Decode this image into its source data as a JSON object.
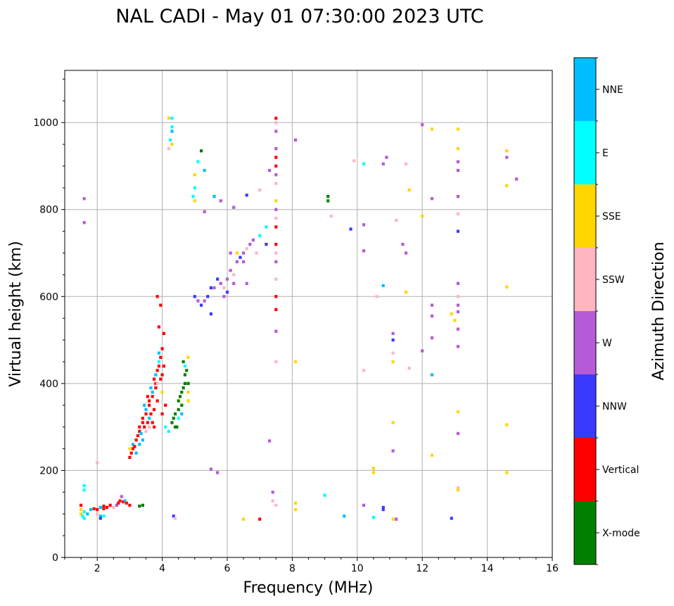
{
  "chart_data": {
    "type": "scatter",
    "title": "NAL CADI - May 01 07:30:00 2023 UTC",
    "xlabel": "Frequency (MHz)",
    "ylabel": "Virtual height (km)",
    "xlim": [
      1,
      16
    ],
    "ylim": [
      0,
      1120
    ],
    "xticks": [
      2,
      4,
      6,
      8,
      10,
      12,
      14,
      16
    ],
    "yticks": [
      0,
      200,
      400,
      600,
      800,
      1000
    ],
    "grid": true,
    "colorbar": {
      "label": "Azimuth Direction",
      "categories": [
        "X-mode",
        "Vertical",
        "NNW",
        "W",
        "SSW",
        "SSE",
        "E",
        "NNE"
      ],
      "colors": [
        "#008000",
        "#ff0000",
        "#3a3aff",
        "#b55ad8",
        "#ffb6c1",
        "#ffd700",
        "#00ffff",
        "#00bfff"
      ]
    },
    "points_format": [
      "frequency_mhz",
      "virtual_height_km",
      "category_index"
    ],
    "points": [
      [
        1.5,
        100,
        5
      ],
      [
        1.5,
        110,
        5
      ],
      [
        1.5,
        120,
        1
      ],
      [
        1.55,
        95,
        6
      ],
      [
        1.6,
        105,
        6
      ],
      [
        1.6,
        165,
        6
      ],
      [
        1.6,
        155,
        6
      ],
      [
        1.7,
        100,
        7
      ],
      [
        1.8,
        110,
        7
      ],
      [
        1.9,
        112,
        1
      ],
      [
        2.0,
        110,
        1
      ],
      [
        2.1,
        115,
        7
      ],
      [
        2.2,
        112,
        1
      ],
      [
        2.2,
        118,
        1
      ],
      [
        2.3,
        115,
        1
      ],
      [
        2.4,
        120,
        1
      ],
      [
        2.5,
        115,
        4
      ],
      [
        2.6,
        120,
        3
      ],
      [
        2.65,
        125,
        1
      ],
      [
        2.7,
        130,
        1
      ],
      [
        2.75,
        140,
        3
      ],
      [
        2.8,
        128,
        1
      ],
      [
        2.85,
        130,
        7
      ],
      [
        2.9,
        125,
        1
      ],
      [
        3.0,
        120,
        1
      ],
      [
        2.1,
        95,
        7
      ],
      [
        2.1,
        90,
        2
      ],
      [
        2.0,
        100,
        4
      ],
      [
        2.2,
        95,
        6
      ],
      [
        1.6,
        90,
        6
      ],
      [
        3.3,
        118,
        0
      ],
      [
        3.4,
        120,
        0
      ],
      [
        3.0,
        230,
        1
      ],
      [
        3.05,
        240,
        1
      ],
      [
        3.1,
        250,
        1
      ],
      [
        3.1,
        260,
        7
      ],
      [
        3.15,
        255,
        1
      ],
      [
        3.0,
        250,
        5
      ],
      [
        3.2,
        270,
        1
      ],
      [
        3.25,
        280,
        1
      ],
      [
        3.3,
        290,
        1
      ],
      [
        3.3,
        300,
        1
      ],
      [
        3.35,
        285,
        7
      ],
      [
        3.4,
        310,
        1
      ],
      [
        3.4,
        320,
        1
      ],
      [
        3.45,
        300,
        1
      ],
      [
        3.5,
        330,
        1
      ],
      [
        3.5,
        340,
        7
      ],
      [
        3.55,
        310,
        1
      ],
      [
        3.6,
        350,
        1
      ],
      [
        3.6,
        360,
        1
      ],
      [
        3.6,
        300,
        4
      ],
      [
        3.65,
        330,
        1
      ],
      [
        3.7,
        370,
        1
      ],
      [
        3.7,
        380,
        7
      ],
      [
        3.75,
        340,
        1
      ],
      [
        3.75,
        300,
        1
      ],
      [
        3.8,
        390,
        1
      ],
      [
        3.8,
        400,
        1
      ],
      [
        3.8,
        420,
        7
      ],
      [
        3.85,
        360,
        1
      ],
      [
        3.85,
        430,
        1
      ],
      [
        3.9,
        440,
        1
      ],
      [
        3.9,
        450,
        6
      ],
      [
        3.9,
        470,
        7
      ],
      [
        3.95,
        460,
        1
      ],
      [
        3.95,
        410,
        1
      ],
      [
        4.0,
        480,
        1
      ],
      [
        4.0,
        420,
        1
      ],
      [
        4.0,
        380,
        5
      ],
      [
        4.05,
        440,
        1
      ],
      [
        3.9,
        530,
        1
      ],
      [
        3.95,
        580,
        1
      ],
      [
        3.85,
        600,
        1
      ],
      [
        4.05,
        515,
        1
      ],
      [
        3.4,
        270,
        7
      ],
      [
        3.5,
        290,
        4
      ],
      [
        3.6,
        320,
        7
      ],
      [
        3.7,
        310,
        1
      ],
      [
        3.45,
        350,
        7
      ],
      [
        3.55,
        370,
        1
      ],
      [
        3.65,
        390,
        7
      ],
      [
        3.75,
        410,
        1
      ],
      [
        3.85,
        400,
        4
      ],
      [
        4.1,
        350,
        1
      ],
      [
        4.0,
        330,
        1
      ],
      [
        4.1,
        300,
        6
      ],
      [
        4.2,
        290,
        6
      ],
      [
        3.3,
        260,
        7
      ],
      [
        3.2,
        240,
        7
      ],
      [
        4.3,
        310,
        0
      ],
      [
        4.35,
        320,
        0
      ],
      [
        4.4,
        330,
        0
      ],
      [
        4.45,
        300,
        0
      ],
      [
        4.5,
        340,
        0
      ],
      [
        4.5,
        360,
        0
      ],
      [
        4.55,
        370,
        0
      ],
      [
        4.6,
        380,
        0
      ],
      [
        4.6,
        350,
        0
      ],
      [
        4.65,
        390,
        0
      ],
      [
        4.7,
        400,
        0
      ],
      [
        4.7,
        420,
        0
      ],
      [
        4.75,
        430,
        0
      ],
      [
        4.65,
        450,
        0
      ],
      [
        4.8,
        380,
        5
      ],
      [
        4.8,
        360,
        5
      ],
      [
        4.6,
        330,
        7
      ],
      [
        4.5,
        320,
        6
      ],
      [
        4.7,
        440,
        6
      ],
      [
        4.8,
        460,
        5
      ],
      [
        4.8,
        400,
        0
      ],
      [
        4.4,
        300,
        0
      ],
      [
        4.2,
        1010,
        5
      ],
      [
        4.3,
        1010,
        6
      ],
      [
        4.3,
        990,
        6
      ],
      [
        4.3,
        950,
        5
      ],
      [
        4.25,
        960,
        6
      ],
      [
        4.3,
        980,
        7
      ],
      [
        4.2,
        940,
        4
      ],
      [
        5.0,
        880,
        5
      ],
      [
        5.0,
        850,
        6
      ],
      [
        4.95,
        830,
        6
      ],
      [
        5.0,
        820,
        5
      ],
      [
        5.1,
        910,
        6
      ],
      [
        5.2,
        935,
        0
      ],
      [
        5.3,
        890,
        7
      ],
      [
        5.6,
        830,
        7
      ],
      [
        5.3,
        795,
        3
      ],
      [
        5.8,
        820,
        3
      ],
      [
        5.0,
        600,
        2
      ],
      [
        5.1,
        590,
        3
      ],
      [
        5.2,
        580,
        2
      ],
      [
        5.3,
        590,
        3
      ],
      [
        5.4,
        600,
        2
      ],
      [
        5.5,
        560,
        2
      ],
      [
        5.6,
        620,
        3
      ],
      [
        5.7,
        640,
        2
      ],
      [
        5.8,
        630,
        3
      ],
      [
        5.9,
        620,
        4
      ],
      [
        6.0,
        640,
        3
      ],
      [
        6.1,
        660,
        3
      ],
      [
        6.1,
        700,
        3
      ],
      [
        6.2,
        650,
        4
      ],
      [
        6.3,
        680,
        3
      ],
      [
        6.4,
        690,
        2
      ],
      [
        6.5,
        700,
        3
      ],
      [
        6.5,
        680,
        3
      ],
      [
        6.6,
        710,
        4
      ],
      [
        6.7,
        720,
        3
      ],
      [
        6.8,
        730,
        3
      ],
      [
        6.9,
        700,
        4
      ],
      [
        7.0,
        740,
        6
      ],
      [
        6.3,
        700,
        5
      ],
      [
        6.0,
        610,
        2
      ],
      [
        5.5,
        620,
        2
      ],
      [
        5.9,
        600,
        3
      ],
      [
        6.2,
        630,
        3
      ],
      [
        6.6,
        630,
        3
      ],
      [
        7.2,
        760,
        6
      ],
      [
        7.2,
        720,
        2
      ],
      [
        7.5,
        1010,
        1
      ],
      [
        7.5,
        1000,
        4
      ],
      [
        7.5,
        980,
        3
      ],
      [
        7.5,
        940,
        3
      ],
      [
        7.5,
        920,
        1
      ],
      [
        7.5,
        900,
        1
      ],
      [
        7.5,
        880,
        3
      ],
      [
        7.5,
        860,
        4
      ],
      [
        7.5,
        820,
        5
      ],
      [
        7.5,
        800,
        3
      ],
      [
        7.5,
        780,
        4
      ],
      [
        7.5,
        760,
        1
      ],
      [
        7.5,
        720,
        1
      ],
      [
        7.5,
        700,
        4
      ],
      [
        7.5,
        680,
        3
      ],
      [
        7.5,
        640,
        4
      ],
      [
        7.5,
        600,
        1
      ],
      [
        7.5,
        570,
        1
      ],
      [
        7.5,
        520,
        3
      ],
      [
        7.5,
        450,
        4
      ],
      [
        7.4,
        150,
        3
      ],
      [
        7.4,
        130,
        4
      ],
      [
        7.5,
        120,
        4
      ],
      [
        1.6,
        825,
        3
      ],
      [
        1.6,
        770,
        3
      ],
      [
        8.1,
        960,
        3
      ],
      [
        9.1,
        830,
        0
      ],
      [
        9.1,
        820,
        0
      ],
      [
        9.2,
        785,
        4
      ],
      [
        9.8,
        755,
        2
      ],
      [
        10.2,
        905,
        6
      ],
      [
        10.2,
        765,
        3
      ],
      [
        10.2,
        705,
        3
      ],
      [
        10.8,
        625,
        7
      ],
      [
        10.6,
        600,
        4
      ],
      [
        10.2,
        430,
        4
      ],
      [
        10.5,
        205,
        5
      ],
      [
        10.5,
        195,
        5
      ],
      [
        11.1,
        515,
        3
      ],
      [
        11.1,
        500,
        2
      ],
      [
        11.1,
        470,
        4
      ],
      [
        11.1,
        450,
        5
      ],
      [
        11.1,
        310,
        5
      ],
      [
        11.1,
        245,
        3
      ],
      [
        11.4,
        720,
        3
      ],
      [
        11.5,
        700,
        3
      ],
      [
        11.5,
        610,
        5
      ],
      [
        11.6,
        845,
        5
      ],
      [
        11.2,
        775,
        4
      ],
      [
        12.0,
        995,
        3
      ],
      [
        12.3,
        985,
        5
      ],
      [
        12.3,
        825,
        3
      ],
      [
        12.0,
        785,
        5
      ],
      [
        12.3,
        580,
        3
      ],
      [
        12.3,
        555,
        3
      ],
      [
        12.3,
        505,
        3
      ],
      [
        12.0,
        475,
        3
      ],
      [
        12.3,
        420,
        7
      ],
      [
        12.3,
        235,
        5
      ],
      [
        13.1,
        985,
        5
      ],
      [
        13.1,
        940,
        5
      ],
      [
        13.1,
        910,
        3
      ],
      [
        13.1,
        890,
        3
      ],
      [
        13.1,
        830,
        3
      ],
      [
        13.1,
        790,
        4
      ],
      [
        13.1,
        750,
        2
      ],
      [
        13.1,
        630,
        3
      ],
      [
        13.1,
        600,
        4
      ],
      [
        13.1,
        580,
        3
      ],
      [
        13.1,
        565,
        3
      ],
      [
        13.0,
        545,
        5
      ],
      [
        12.9,
        560,
        5
      ],
      [
        13.1,
        525,
        3
      ],
      [
        13.1,
        485,
        3
      ],
      [
        13.1,
        335,
        5
      ],
      [
        13.1,
        285,
        3
      ],
      [
        13.1,
        160,
        4
      ],
      [
        13.1,
        155,
        5
      ],
      [
        12.9,
        90,
        2
      ],
      [
        14.6,
        935,
        5
      ],
      [
        14.6,
        920,
        3
      ],
      [
        14.9,
        870,
        3
      ],
      [
        14.6,
        855,
        5
      ],
      [
        14.6,
        622,
        5
      ],
      [
        14.6,
        305,
        5
      ],
      [
        14.6,
        195,
        5
      ],
      [
        10.2,
        120,
        3
      ],
      [
        10.8,
        115,
        2
      ],
      [
        10.8,
        110,
        2
      ],
      [
        10.5,
        92,
        6
      ],
      [
        11.1,
        88,
        5
      ],
      [
        11.2,
        88,
        3
      ],
      [
        9.0,
        143,
        6
      ],
      [
        9.6,
        95,
        7
      ],
      [
        8.1,
        110,
        5
      ],
      [
        8.1,
        125,
        5
      ],
      [
        7.0,
        88,
        1
      ],
      [
        6.5,
        88,
        5
      ],
      [
        4.35,
        95,
        2
      ],
      [
        4.4,
        90,
        4
      ],
      [
        5.5,
        203,
        3
      ],
      [
        5.7,
        195,
        3
      ],
      [
        7.3,
        268,
        3
      ],
      [
        2.0,
        218,
        4
      ],
      [
        9.9,
        912,
        4
      ],
      [
        10.8,
        905,
        3
      ],
      [
        11.5,
        905,
        4
      ],
      [
        6.6,
        833,
        2
      ],
      [
        6.2,
        805,
        3
      ],
      [
        7.0,
        845,
        4
      ],
      [
        7.3,
        890,
        3
      ],
      [
        8.1,
        450,
        5
      ],
      [
        11.6,
        435,
        4
      ],
      [
        10.9,
        920,
        3
      ]
    ]
  }
}
